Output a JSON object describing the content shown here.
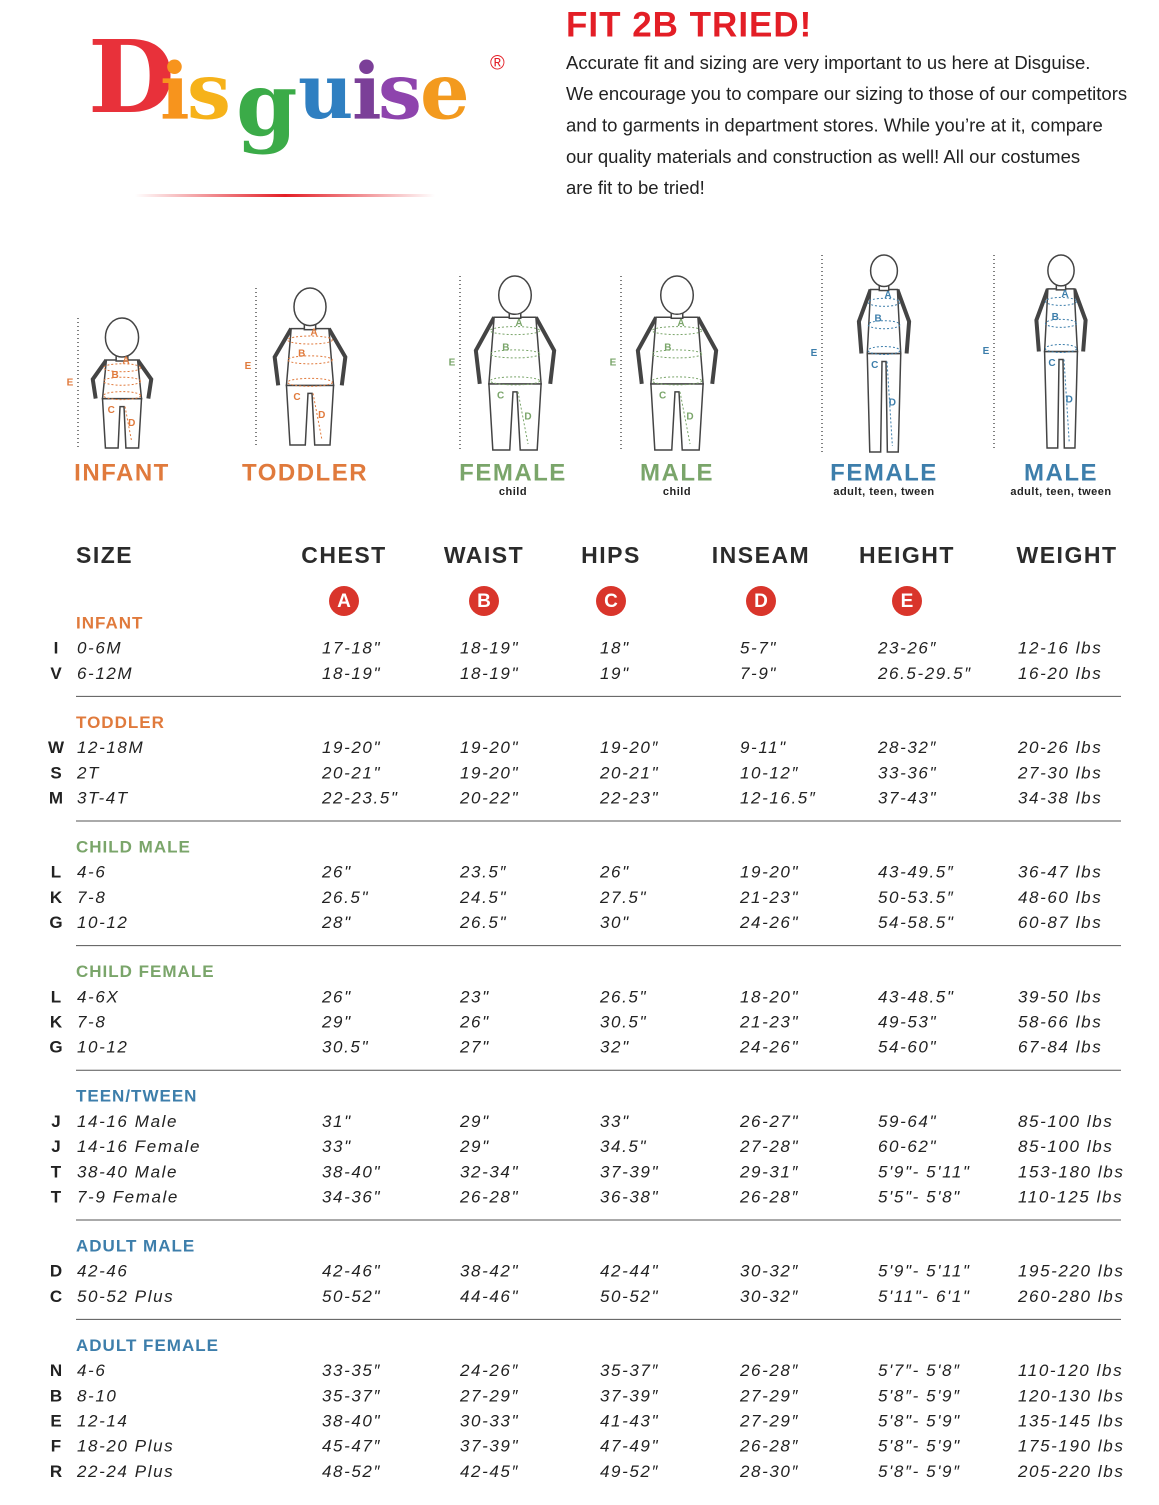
{
  "header": {
    "logo_letters": [
      "D",
      "i",
      "s",
      "g",
      "u",
      "i",
      "s",
      "e"
    ],
    "logo_mark": "®",
    "title": "FIT 2B TRIED!",
    "intro_lines": [
      "Accurate fit and sizing are very important to us here at Disguise.",
      "We encourage you to compare our sizing to those of our competitors",
      "and to garments in department stores. While you’re at it, compare",
      "our quality materials and construction as well! All our costumes",
      "are fit to be tried!"
    ]
  },
  "figures": [
    {
      "label": "INFANT"
    },
    {
      "label": "TODDLER"
    },
    {
      "label": "FEMALE",
      "sublabel": "child"
    },
    {
      "label": "MALE",
      "sublabel": "child"
    },
    {
      "label": "FEMALE",
      "sublabel": "adult, teen, tween"
    },
    {
      "label": "MALE",
      "sublabel": "adult, teen, tween"
    }
  ],
  "table": {
    "columns": [
      {
        "name": "SIZE"
      },
      {
        "name": "CHEST",
        "letter": "A"
      },
      {
        "name": "WAIST",
        "letter": "B"
      },
      {
        "name": "HIPS",
        "letter": "C"
      },
      {
        "name": "INSEAM",
        "letter": "D"
      },
      {
        "name": "HEIGHT",
        "letter": "E"
      },
      {
        "name": "WEIGHT"
      }
    ],
    "groups": [
      {
        "name": "INFANT",
        "rows": [
          [
            "I",
            "0-6M",
            "17-18\"",
            "18-19\"",
            "18\"",
            "5-7\"",
            "23-26″",
            "12-16 lbs"
          ],
          [
            "V",
            "6-12M",
            "18-19\"",
            "18-19\"",
            "19\"",
            "7-9\"",
            "26.5-29.5″",
            "16-20 lbs"
          ]
        ]
      },
      {
        "name": "TODDLER",
        "rows": [
          [
            "W",
            "12-18M",
            "19-20\"",
            "19-20\"",
            "19-20″",
            "9-11\"",
            "28-32″",
            "20-26 lbs"
          ],
          [
            "S",
            "2T",
            "20-21\"",
            "19-20\"",
            "20-21\"",
            "10-12″",
            "33-36\"",
            "27-30 lbs"
          ],
          [
            "M",
            "3T-4T",
            "22-23.5\"",
            "20-22\"",
            "22-23\"",
            "12-16.5″",
            "37-43\"",
            "34-38 lbs"
          ]
        ]
      },
      {
        "name": "CHILD MALE",
        "rows": [
          [
            "L",
            "4-6",
            "26\"",
            "23.5″",
            "26\"",
            "19-20\"",
            "43-49.5″",
            "36-47 lbs"
          ],
          [
            "K",
            "7-8",
            "26.5\"",
            "24.5\"",
            "27.5\"",
            "21-23\"",
            "50-53.5″",
            "48-60 lbs"
          ],
          [
            "G",
            "10-12",
            "28\"",
            "26.5\"",
            "30\"",
            "24-26\"",
            "54-58.5\"",
            "60-87 lbs"
          ]
        ]
      },
      {
        "name": "CHILD FEMALE",
        "rows": [
          [
            "L",
            "4-6X",
            "26\"",
            "23\"",
            "26.5\"",
            "18-20\"",
            "43-48.5\"",
            "39-50 lbs"
          ],
          [
            "K",
            "7-8",
            "29\"",
            "26\"",
            "30.5\"",
            "21-23\"",
            "49-53\"",
            "58-66 lbs"
          ],
          [
            "G",
            "10-12",
            "30.5\"",
            "27\"",
            "32\"",
            "24-26\"",
            "54-60\"",
            "67-84 lbs"
          ]
        ]
      },
      {
        "name": "TEEN/TWEEN",
        "rows": [
          [
            "J",
            "14-16 Male",
            "31\"",
            "29\"",
            "33\"",
            "26-27\"",
            "59-64\"",
            "85-100 lbs"
          ],
          [
            "J",
            "14-16 Female",
            "33\"",
            "29\"",
            "34.5\"",
            "27-28\"",
            "60-62\"",
            "85-100 lbs"
          ],
          [
            "T",
            "38-40 Male",
            "38-40\"",
            "32-34\"",
            "37-39\"",
            "29-31″",
            "5'9\"- 5'11\"",
            "153-180 lbs"
          ],
          [
            "T",
            "7-9 Female",
            "34-36\"",
            "26-28\"",
            "36-38\"",
            "26-28″",
            "5'5\"- 5'8\"",
            "110-125 lbs"
          ]
        ]
      },
      {
        "name": "ADULT MALE",
        "rows": [
          [
            "D",
            "42-46",
            "42-46\"",
            "38-42\"",
            "42-44\"",
            "30-32″",
            "5'9\"- 5'11\"",
            "195-220 lbs"
          ],
          [
            "C",
            "50-52 Plus",
            "50-52\"",
            "44-46\"",
            "50-52\"",
            "30-32″",
            "5'11\"- 6'1\"",
            "260-280 lbs"
          ]
        ]
      },
      {
        "name": "ADULT FEMALE",
        "rows": [
          [
            "N",
            "4-6",
            "33-35″",
            "24-26″",
            "35-37″",
            "26-28″",
            "5'7″- 5'8″",
            "110-120 lbs"
          ],
          [
            "B",
            "8-10",
            "35-37″",
            "27-29″",
            "37-39″",
            "27-29″",
            "5'8″- 5'9″",
            "120-130 lbs"
          ],
          [
            "E",
            "12-14",
            "38-40\"",
            "30-33\"",
            "41-43\"",
            "27-29″",
            "5'8\"- 5'9\"",
            "135-145 lbs"
          ],
          [
            "F",
            "18-20 Plus",
            "45-47″",
            "37-39\"",
            "47-49\"",
            "26-28″",
            "5'8\"- 5'9\"",
            "175-190 lbs"
          ],
          [
            "R",
            "22-24 Plus",
            "48-52″",
            "42-45″",
            "49-52″",
            "28-30″",
            "5'8″- 5'9″",
            "205-220 lbs"
          ]
        ]
      }
    ]
  }
}
